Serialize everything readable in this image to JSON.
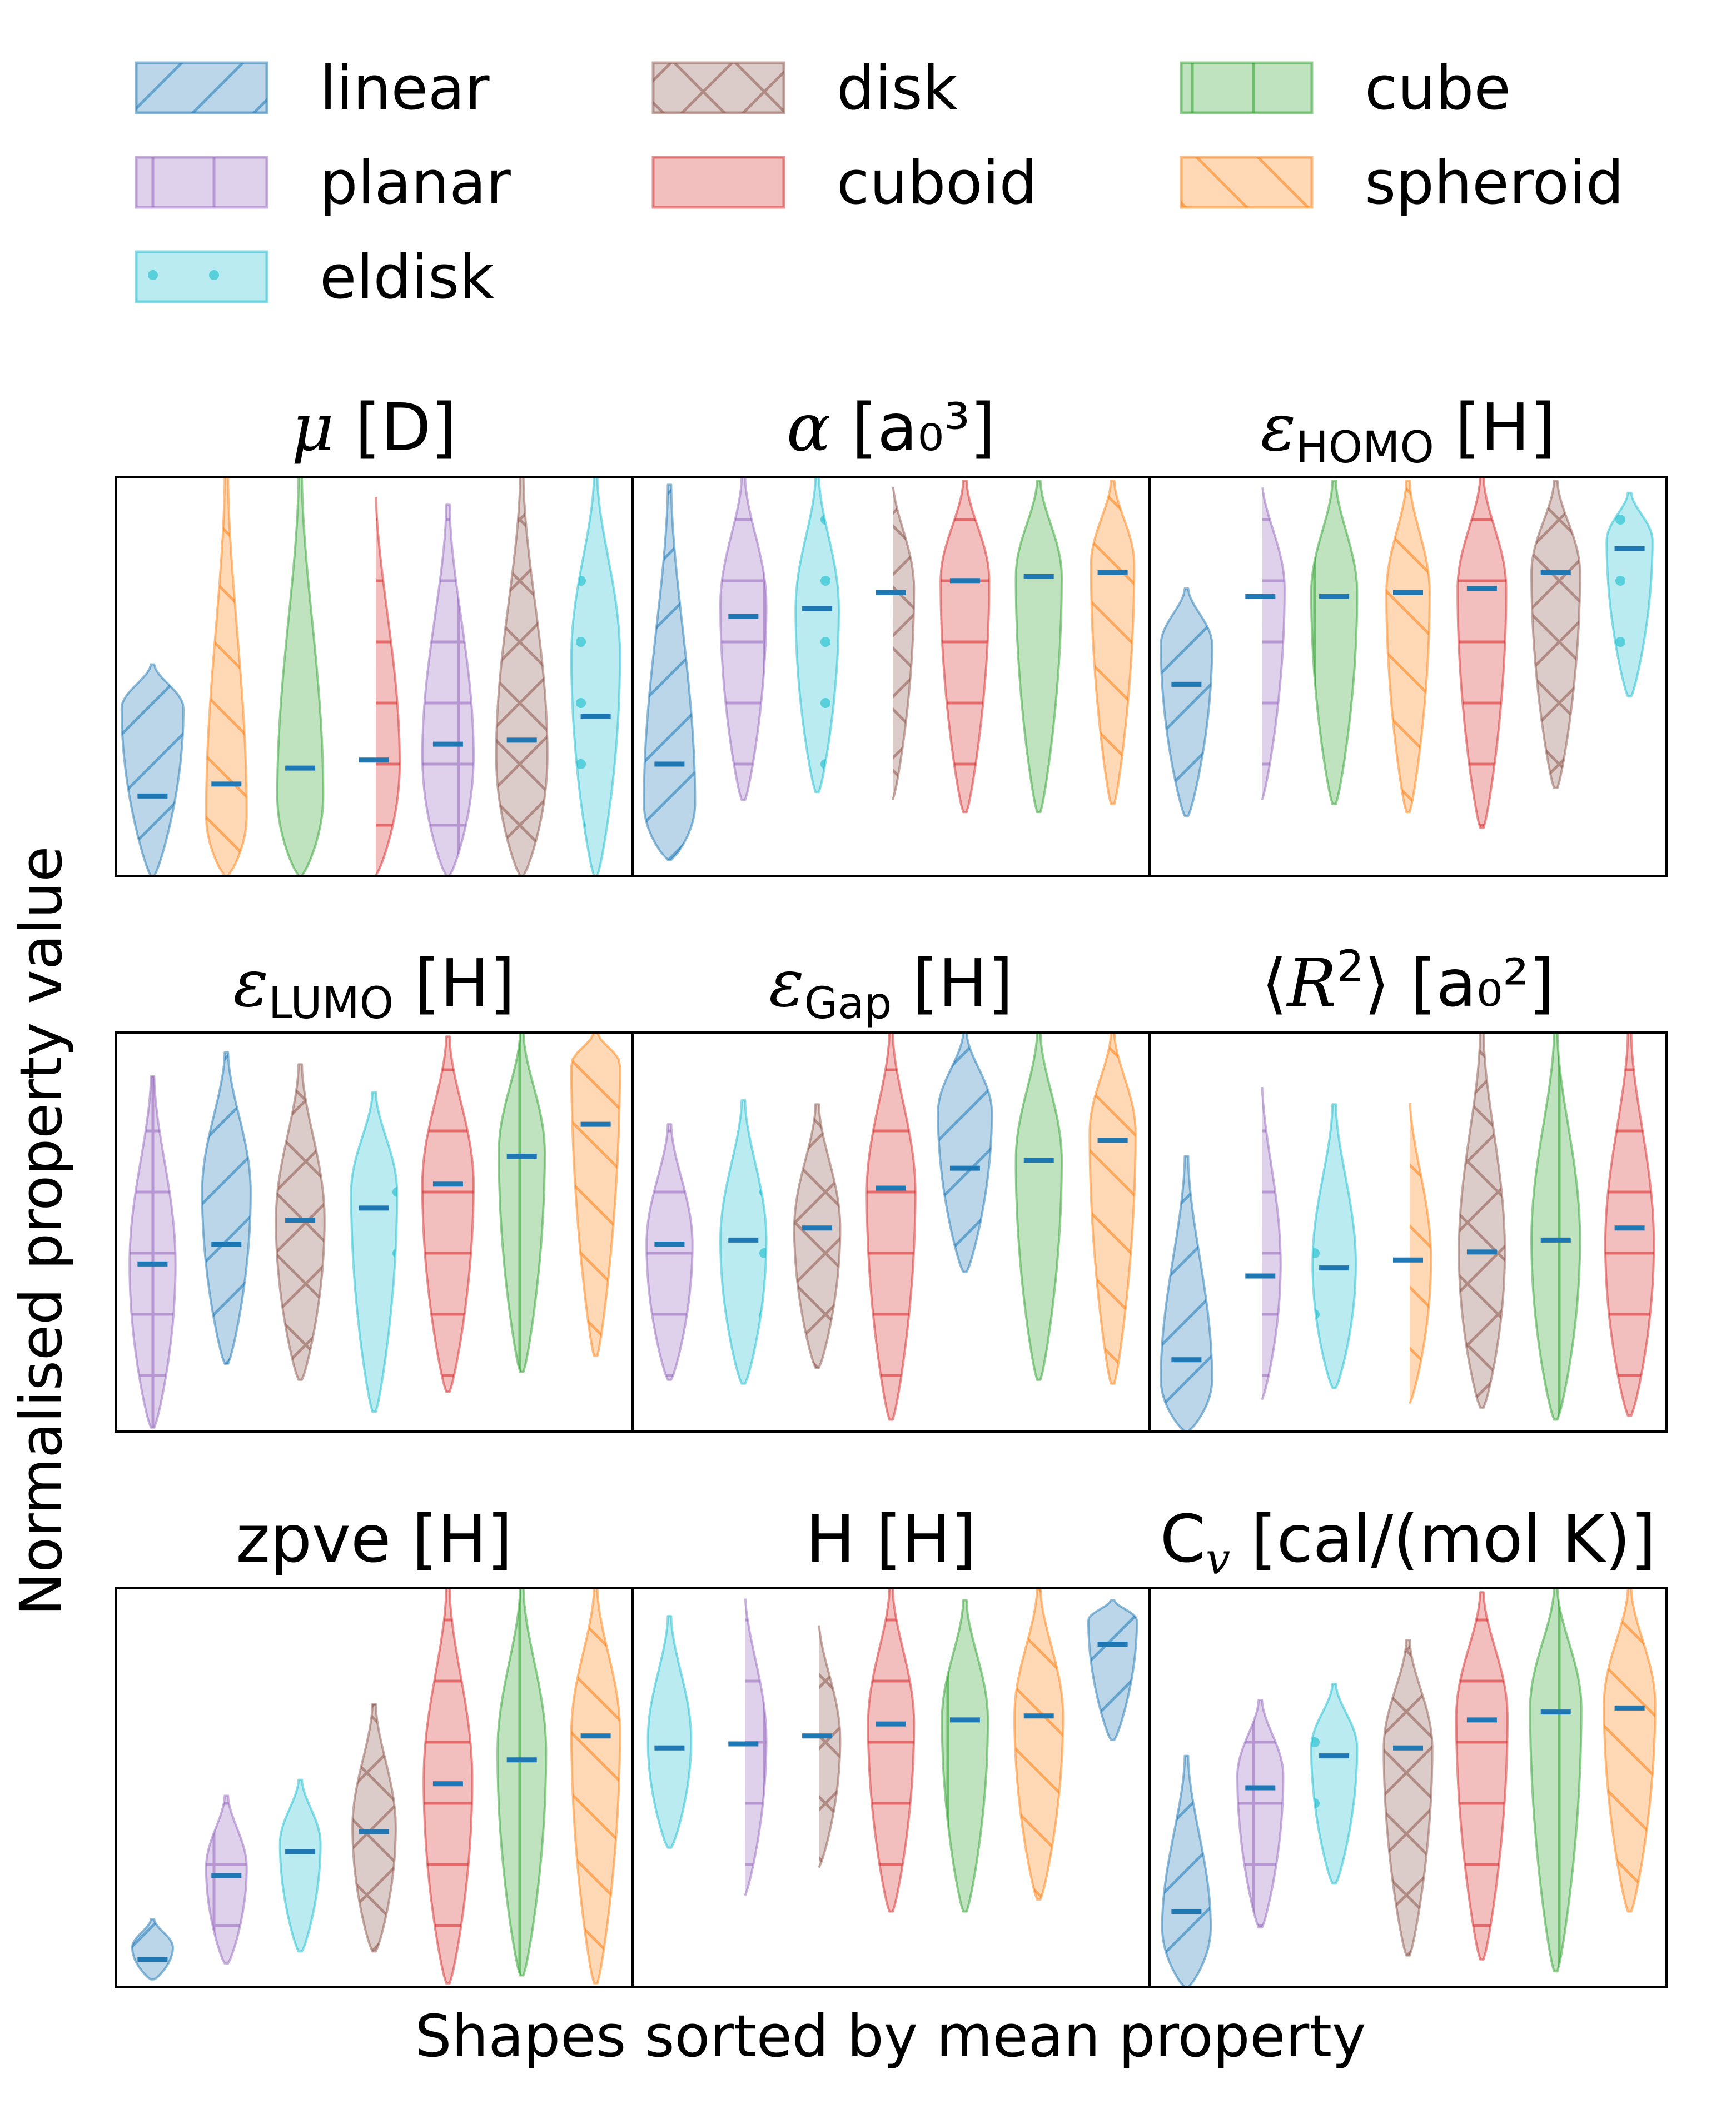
{
  "legend": {
    "placement": "top",
    "items": [
      {
        "name": "linear",
        "color": "#1f77b4",
        "hatch": "diag-fwd"
      },
      {
        "name": "disk",
        "color": "#8c564b",
        "hatch": "cross"
      },
      {
        "name": "cube",
        "color": "#2ca02c",
        "hatch": "vertical"
      },
      {
        "name": "planar",
        "color": "#9467bd",
        "hatch": "plus"
      },
      {
        "name": "cuboid",
        "color": "#d62728",
        "hatch": "horizontal"
      },
      {
        "name": "spheroid",
        "color": "#ff7f0e",
        "hatch": "diag-back"
      },
      {
        "name": "eldisk",
        "color": "#17becf",
        "hatch": "dots"
      }
    ]
  },
  "axes": {
    "ylabel": "Normalised property value",
    "xlabel": "Shapes sorted by mean property"
  },
  "mean_marker_color": "#1f77b4",
  "chart_data": {
    "type": "violin",
    "grid": false,
    "ylim": [
      0,
      1
    ],
    "panels": [
      {
        "title": {
          "pre": "",
          "italic": "μ",
          "post": " [D]"
        },
        "violins": [
          {
            "shape": "linear",
            "mean": 0.2,
            "min": 0.0,
            "max": 0.53,
            "peak": 0.42,
            "maxw": 1.1
          },
          {
            "shape": "spheroid",
            "mean": 0.23,
            "min": 0.0,
            "max": 1.0,
            "peak": 0.15,
            "maxw": 0.7
          },
          {
            "shape": "cube",
            "mean": 0.27,
            "min": 0.0,
            "max": 1.0,
            "peak": 0.2,
            "maxw": 0.8
          },
          {
            "shape": "cuboid",
            "mean": 0.29,
            "min": 0.0,
            "max": 0.97,
            "peak": 0.28,
            "maxw": 0.9
          },
          {
            "shape": "planar",
            "mean": 0.33,
            "min": 0.0,
            "max": 0.93,
            "peak": 0.3,
            "maxw": 0.9
          },
          {
            "shape": "disk",
            "mean": 0.34,
            "min": 0.0,
            "max": 1.0,
            "peak": 0.3,
            "maxw": 0.9
          },
          {
            "shape": "eldisk",
            "mean": 0.4,
            "min": 0.0,
            "max": 1.0,
            "peak": 0.55,
            "maxw": 0.85
          }
        ]
      },
      {
        "title": {
          "pre": "",
          "italic": "α",
          "post": " [a₀³]"
        },
        "violins": [
          {
            "shape": "linear",
            "mean": 0.28,
            "min": 0.04,
            "max": 0.98,
            "peak": 0.18,
            "maxw": 0.9
          },
          {
            "shape": "planar",
            "mean": 0.65,
            "min": 0.19,
            "max": 1.0,
            "peak": 0.68,
            "maxw": 0.8
          },
          {
            "shape": "eldisk",
            "mean": 0.67,
            "min": 0.21,
            "max": 1.0,
            "peak": 0.67,
            "maxw": 0.75
          },
          {
            "shape": "disk",
            "mean": 0.71,
            "min": 0.19,
            "max": 0.99,
            "peak": 0.72,
            "maxw": 0.8
          },
          {
            "shape": "cuboid",
            "mean": 0.74,
            "min": 0.16,
            "max": 0.99,
            "peak": 0.74,
            "maxw": 0.85
          },
          {
            "shape": "cube",
            "mean": 0.75,
            "min": 0.16,
            "max": 0.99,
            "peak": 0.75,
            "maxw": 0.8
          },
          {
            "shape": "spheroid",
            "mean": 0.76,
            "min": 0.18,
            "max": 0.99,
            "peak": 0.78,
            "maxw": 0.75
          }
        ]
      },
      {
        "title": {
          "pre": "",
          "italic": "ε",
          "sub": "HOMO",
          "post": " [H]"
        },
        "violins": [
          {
            "shape": "linear",
            "mean": 0.48,
            "min": 0.15,
            "max": 0.72,
            "peak": 0.58,
            "maxw": 0.9
          },
          {
            "shape": "planar",
            "mean": 0.7,
            "min": 0.19,
            "max": 0.99,
            "peak": 0.72,
            "maxw": 0.85
          },
          {
            "shape": "cube",
            "mean": 0.7,
            "min": 0.18,
            "max": 0.99,
            "peak": 0.71,
            "maxw": 0.8
          },
          {
            "shape": "spheroid",
            "mean": 0.71,
            "min": 0.16,
            "max": 0.99,
            "peak": 0.71,
            "maxw": 0.75
          },
          {
            "shape": "cuboid",
            "mean": 0.72,
            "min": 0.12,
            "max": 1.0,
            "peak": 0.72,
            "maxw": 0.85
          },
          {
            "shape": "disk",
            "mean": 0.76,
            "min": 0.22,
            "max": 0.99,
            "peak": 0.76,
            "maxw": 0.85
          },
          {
            "shape": "eldisk",
            "mean": 0.82,
            "min": 0.45,
            "max": 0.96,
            "peak": 0.84,
            "maxw": 0.8
          }
        ]
      },
      {
        "title": {
          "pre": "",
          "italic": "ε",
          "sub": "LUMO",
          "post": " [H]"
        },
        "violins": [
          {
            "shape": "planar",
            "mean": 0.42,
            "min": 0.01,
            "max": 0.89,
            "peak": 0.42,
            "maxw": 0.8
          },
          {
            "shape": "linear",
            "mean": 0.47,
            "min": 0.17,
            "max": 0.95,
            "peak": 0.6,
            "maxw": 0.85
          },
          {
            "shape": "disk",
            "mean": 0.53,
            "min": 0.13,
            "max": 0.92,
            "peak": 0.53,
            "maxw": 0.85
          },
          {
            "shape": "eldisk",
            "mean": 0.56,
            "min": 0.05,
            "max": 0.85,
            "peak": 0.6,
            "maxw": 0.8
          },
          {
            "shape": "cuboid",
            "mean": 0.62,
            "min": 0.1,
            "max": 0.99,
            "peak": 0.62,
            "maxw": 0.9
          },
          {
            "shape": "cube",
            "mean": 0.69,
            "min": 0.15,
            "max": 1.0,
            "peak": 0.7,
            "maxw": 0.8
          },
          {
            "shape": "spheroid",
            "mean": 0.77,
            "min": 0.19,
            "max": 1.0,
            "peak": 0.92,
            "maxw": 0.85
          }
        ]
      },
      {
        "title": {
          "pre": "",
          "italic": "ε",
          "sub": "Gap",
          "post": " [H]"
        },
        "violins": [
          {
            "shape": "planar",
            "mean": 0.47,
            "min": 0.13,
            "max": 0.77,
            "peak": 0.47,
            "maxw": 0.8
          },
          {
            "shape": "eldisk",
            "mean": 0.48,
            "min": 0.12,
            "max": 0.83,
            "peak": 0.48,
            "maxw": 0.8
          },
          {
            "shape": "disk",
            "mean": 0.51,
            "min": 0.16,
            "max": 0.82,
            "peak": 0.51,
            "maxw": 0.8
          },
          {
            "shape": "cuboid",
            "mean": 0.61,
            "min": 0.03,
            "max": 1.0,
            "peak": 0.6,
            "maxw": 0.85
          },
          {
            "shape": "linear",
            "mean": 0.66,
            "min": 0.4,
            "max": 1.0,
            "peak": 0.8,
            "maxw": 0.95
          },
          {
            "shape": "cube",
            "mean": 0.68,
            "min": 0.13,
            "max": 1.0,
            "peak": 0.68,
            "maxw": 0.8
          },
          {
            "shape": "spheroid",
            "mean": 0.73,
            "min": 0.12,
            "max": 1.0,
            "peak": 0.75,
            "maxw": 0.8
          }
        ]
      },
      {
        "title": {
          "pre": "⟨",
          "italic": "R",
          "sup": "2",
          "post": "⟩ [a₀²]"
        },
        "violins": [
          {
            "shape": "linear",
            "mean": 0.18,
            "min": 0.0,
            "max": 0.69,
            "peak": 0.13,
            "maxw": 0.9
          },
          {
            "shape": "planar",
            "mean": 0.39,
            "min": 0.08,
            "max": 0.88,
            "peak": 0.42,
            "maxw": 0.7
          },
          {
            "shape": "eldisk",
            "mean": 0.41,
            "min": 0.11,
            "max": 0.82,
            "peak": 0.42,
            "maxw": 0.75
          },
          {
            "shape": "spheroid",
            "mean": 0.43,
            "min": 0.07,
            "max": 0.84,
            "peak": 0.43,
            "maxw": 0.8
          },
          {
            "shape": "disk",
            "mean": 0.45,
            "min": 0.06,
            "max": 1.0,
            "peak": 0.45,
            "maxw": 0.8
          },
          {
            "shape": "cube",
            "mean": 0.48,
            "min": 0.03,
            "max": 1.0,
            "peak": 0.48,
            "maxw": 0.85
          },
          {
            "shape": "cuboid",
            "mean": 0.51,
            "min": 0.04,
            "max": 1.0,
            "peak": 0.47,
            "maxw": 0.85
          }
        ]
      },
      {
        "title": {
          "pre": "zpve [H]",
          "italic": "",
          "post": ""
        },
        "violins": [
          {
            "shape": "linear",
            "mean": 0.07,
            "min": 0.02,
            "max": 0.17,
            "peak": 0.1,
            "maxw": 0.7
          },
          {
            "shape": "planar",
            "mean": 0.28,
            "min": 0.06,
            "max": 0.48,
            "peak": 0.3,
            "maxw": 0.7
          },
          {
            "shape": "eldisk",
            "mean": 0.34,
            "min": 0.09,
            "max": 0.52,
            "peak": 0.36,
            "maxw": 0.7
          },
          {
            "shape": "disk",
            "mean": 0.39,
            "min": 0.09,
            "max": 0.71,
            "peak": 0.4,
            "maxw": 0.75
          },
          {
            "shape": "cuboid",
            "mean": 0.51,
            "min": 0.01,
            "max": 1.0,
            "peak": 0.52,
            "maxw": 0.85
          },
          {
            "shape": "cube",
            "mean": 0.57,
            "min": 0.03,
            "max": 1.0,
            "peak": 0.59,
            "maxw": 0.85
          },
          {
            "shape": "spheroid",
            "mean": 0.63,
            "min": 0.01,
            "max": 1.0,
            "peak": 0.64,
            "maxw": 0.85
          }
        ]
      },
      {
        "title": {
          "pre": "H [H]",
          "italic": "",
          "post": ""
        },
        "violins": [
          {
            "shape": "eldisk",
            "mean": 0.6,
            "min": 0.35,
            "max": 0.93,
            "peak": 0.62,
            "maxw": 0.75
          },
          {
            "shape": "planar",
            "mean": 0.61,
            "min": 0.23,
            "max": 0.99,
            "peak": 0.62,
            "maxw": 0.8
          },
          {
            "shape": "disk",
            "mean": 0.63,
            "min": 0.3,
            "max": 0.92,
            "peak": 0.62,
            "maxw": 0.8
          },
          {
            "shape": "cuboid",
            "mean": 0.66,
            "min": 0.19,
            "max": 1.0,
            "peak": 0.66,
            "maxw": 0.8
          },
          {
            "shape": "cube",
            "mean": 0.67,
            "min": 0.19,
            "max": 0.97,
            "peak": 0.67,
            "maxw": 0.8
          },
          {
            "shape": "spheroid",
            "mean": 0.68,
            "min": 0.22,
            "max": 1.0,
            "peak": 0.68,
            "maxw": 0.85
          },
          {
            "shape": "linear",
            "mean": 0.86,
            "min": 0.62,
            "max": 0.97,
            "peak": 0.92,
            "maxw": 0.85
          }
        ]
      },
      {
        "title": {
          "pre": "C",
          "italic": "",
          "sub": "v",
          "post": " [cal/(mol K)]"
        },
        "violins": [
          {
            "shape": "linear",
            "mean": 0.19,
            "min": 0.0,
            "max": 0.58,
            "peak": 0.15,
            "maxw": 0.85
          },
          {
            "shape": "planar",
            "mean": 0.5,
            "min": 0.15,
            "max": 0.72,
            "peak": 0.53,
            "maxw": 0.8
          },
          {
            "shape": "eldisk",
            "mean": 0.58,
            "min": 0.26,
            "max": 0.76,
            "peak": 0.6,
            "maxw": 0.8
          },
          {
            "shape": "disk",
            "mean": 0.6,
            "min": 0.08,
            "max": 0.87,
            "peak": 0.6,
            "maxw": 0.85
          },
          {
            "shape": "cuboid",
            "mean": 0.67,
            "min": 0.07,
            "max": 0.99,
            "peak": 0.68,
            "maxw": 0.9
          },
          {
            "shape": "cube",
            "mean": 0.69,
            "min": 0.04,
            "max": 1.0,
            "peak": 0.7,
            "maxw": 0.9
          },
          {
            "shape": "spheroid",
            "mean": 0.7,
            "min": 0.19,
            "max": 1.0,
            "peak": 0.71,
            "maxw": 0.9
          }
        ]
      }
    ]
  }
}
